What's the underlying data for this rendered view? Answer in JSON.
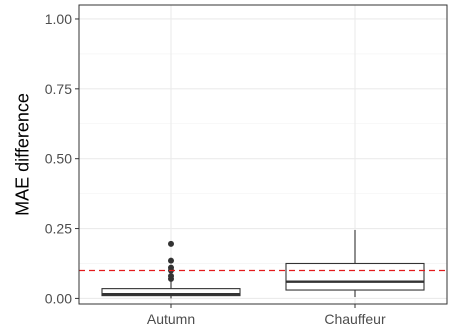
{
  "chart_data": {
    "type": "box",
    "title": "",
    "xlabel": "",
    "ylabel": "MAE difference",
    "ylim": [
      -0.02,
      1.05
    ],
    "yticks": [
      0.0,
      0.25,
      0.5,
      0.75,
      1.0
    ],
    "ytick_labels": [
      "0.00",
      "0.25",
      "0.50",
      "0.75",
      "1.00"
    ],
    "grid": true,
    "reference_line": {
      "y": 0.1,
      "style": "dashed",
      "color": "#e31a1c"
    },
    "categories": [
      "Autumn",
      "Chauffeur"
    ],
    "boxes": [
      {
        "category": "Autumn",
        "whisker_low": 0.0,
        "q1": 0.01,
        "median": 0.015,
        "q3": 0.035,
        "whisker_high": 0.065,
        "outliers": [
          0.07,
          0.08,
          0.1,
          0.11,
          0.135,
          0.195
        ]
      },
      {
        "category": "Chauffeur",
        "whisker_low": 0.005,
        "q1": 0.03,
        "median": 0.06,
        "q3": 0.125,
        "whisker_high": 0.245,
        "outliers": []
      }
    ]
  }
}
